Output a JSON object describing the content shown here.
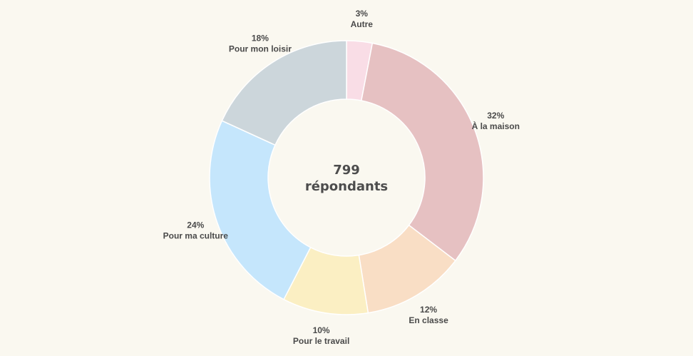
{
  "chart_data": {
    "type": "pie",
    "variant": "donut",
    "center_label": {
      "value": "799",
      "text": "répondants"
    },
    "slices": [
      {
        "label": "Autre",
        "value": 3,
        "value_label": "3%",
        "color": "#f9dde6"
      },
      {
        "label": "À la maison",
        "value": 32,
        "value_label": "32%",
        "color": "#e6c1c2"
      },
      {
        "label": "En classe",
        "value": 12,
        "value_label": "12%",
        "color": "#f9dec5"
      },
      {
        "label": "Pour le travail",
        "value": 10,
        "value_label": "10%",
        "color": "#fbefc3"
      },
      {
        "label": "Pour ma culture",
        "value": 24,
        "value_label": "24%",
        "color": "#c5e6fc"
      },
      {
        "label": "Pour mon loisir",
        "value": 18,
        "value_label": "18%",
        "color": "#ccd6db"
      }
    ],
    "start": "top",
    "direction": "clockwise",
    "legend": "none"
  },
  "colors": {
    "background": "#faf8f0",
    "label_text": "#4a4a4a"
  }
}
